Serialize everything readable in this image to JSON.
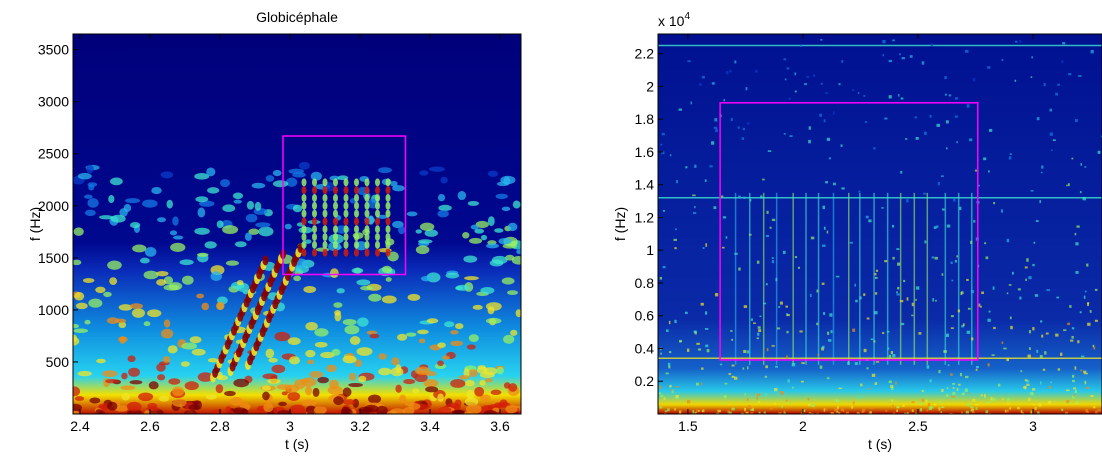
{
  "chart_data": [
    {
      "type": "heatmap",
      "title": "Globicéphale",
      "xlabel": "t (s)",
      "ylabel": "f (Hz)",
      "xlim": [
        2.38,
        3.66
      ],
      "ylim": [
        0,
        3650
      ],
      "xticks": [
        2.4,
        2.6,
        2.8,
        3,
        3.2,
        3.4,
        3.6
      ],
      "xtick_labels": [
        "2.4",
        "2.6",
        "2.8",
        "3",
        "3.2",
        "3.4",
        "3.6"
      ],
      "yticks": [
        500,
        1000,
        1500,
        2000,
        2500,
        3000,
        3500
      ],
      "ytick_labels": [
        "500",
        "1000",
        "1500",
        "2000",
        "2500",
        "3000",
        "3500"
      ],
      "colormap": "jet",
      "highlight_box": {
        "x": [
          2.98,
          3.33
        ],
        "y": [
          1340,
          2670
        ],
        "color": "#ff00ff"
      },
      "grid": false
    },
    {
      "type": "heatmap",
      "title": "",
      "xlabel": "t (s)",
      "ylabel": "f (Hz)",
      "y_multiplier": "x 10",
      "y_multiplier_exponent": "4",
      "xlim": [
        1.37,
        3.3
      ],
      "ylim": [
        0,
        2.32
      ],
      "xticks": [
        1.5,
        2,
        2.5,
        3
      ],
      "xtick_labels": [
        "1.5",
        "2",
        "2.5",
        "3"
      ],
      "yticks": [
        0.2,
        0.4,
        0.6,
        0.8,
        1,
        1.2,
        1.4,
        1.6,
        1.8,
        2,
        2.2
      ],
      "ytick_labels": [
        "0.2",
        "0.4",
        "0.6",
        "0.8",
        "1",
        "1.2",
        "1.4",
        "1.6",
        "1.8",
        "2",
        "2.2"
      ],
      "colormap": "jet",
      "highlight_box": {
        "x": [
          1.64,
          2.76
        ],
        "y": [
          0.33,
          1.9
        ],
        "color": "#ff00ff"
      },
      "grid": false
    }
  ],
  "colors": {
    "background_deep": "#00007a",
    "background": "#0a1aa0",
    "highlight": "#ff00ff"
  }
}
